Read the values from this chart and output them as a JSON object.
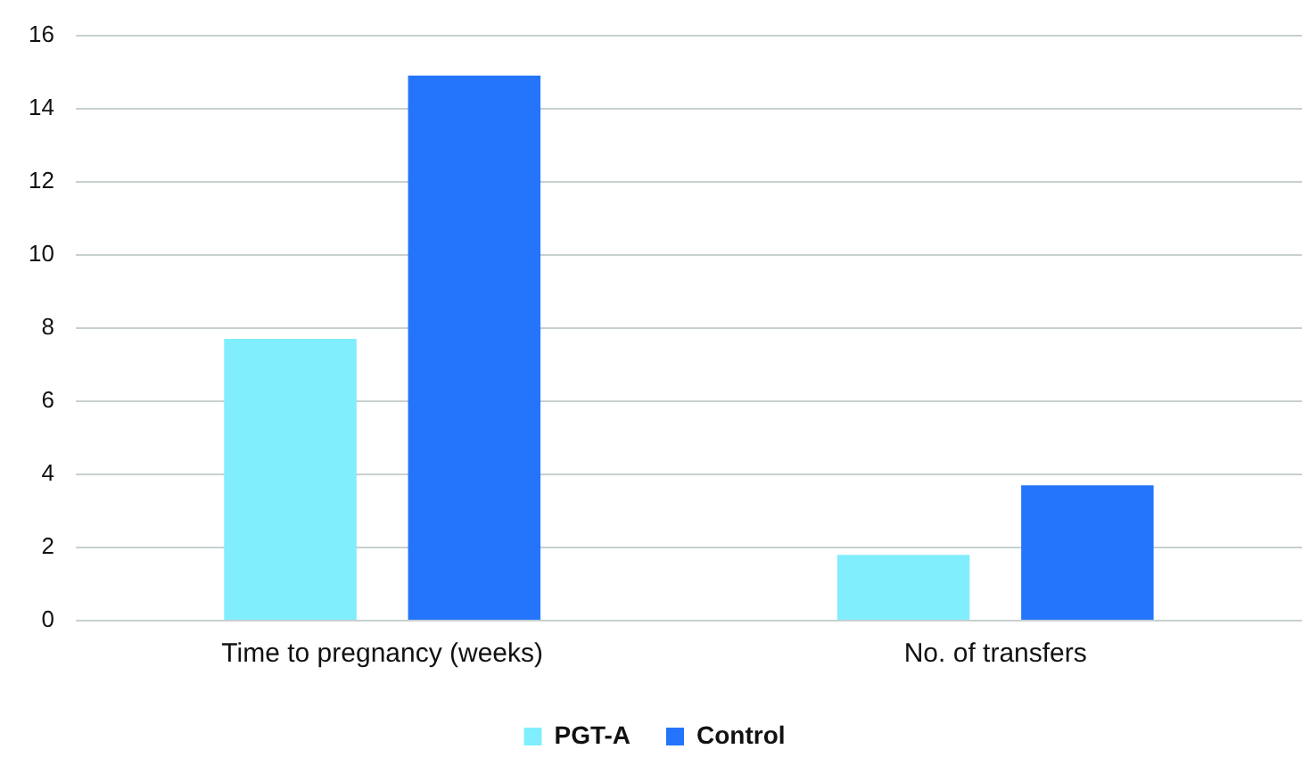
{
  "chart_data": {
    "type": "bar",
    "categories": [
      "Time to pregnancy (weeks)",
      "No. of transfers"
    ],
    "series": [
      {
        "name": "PGT-A",
        "color": "#80eefc",
        "values": [
          7.7,
          1.8
        ]
      },
      {
        "name": "Control",
        "color": "#2575fc",
        "values": [
          14.9,
          3.7
        ]
      }
    ],
    "ylim": [
      0,
      16
    ],
    "yticks": [
      0,
      2,
      4,
      6,
      8,
      10,
      12,
      14,
      16
    ],
    "grid": "y",
    "legend": "bottom"
  }
}
